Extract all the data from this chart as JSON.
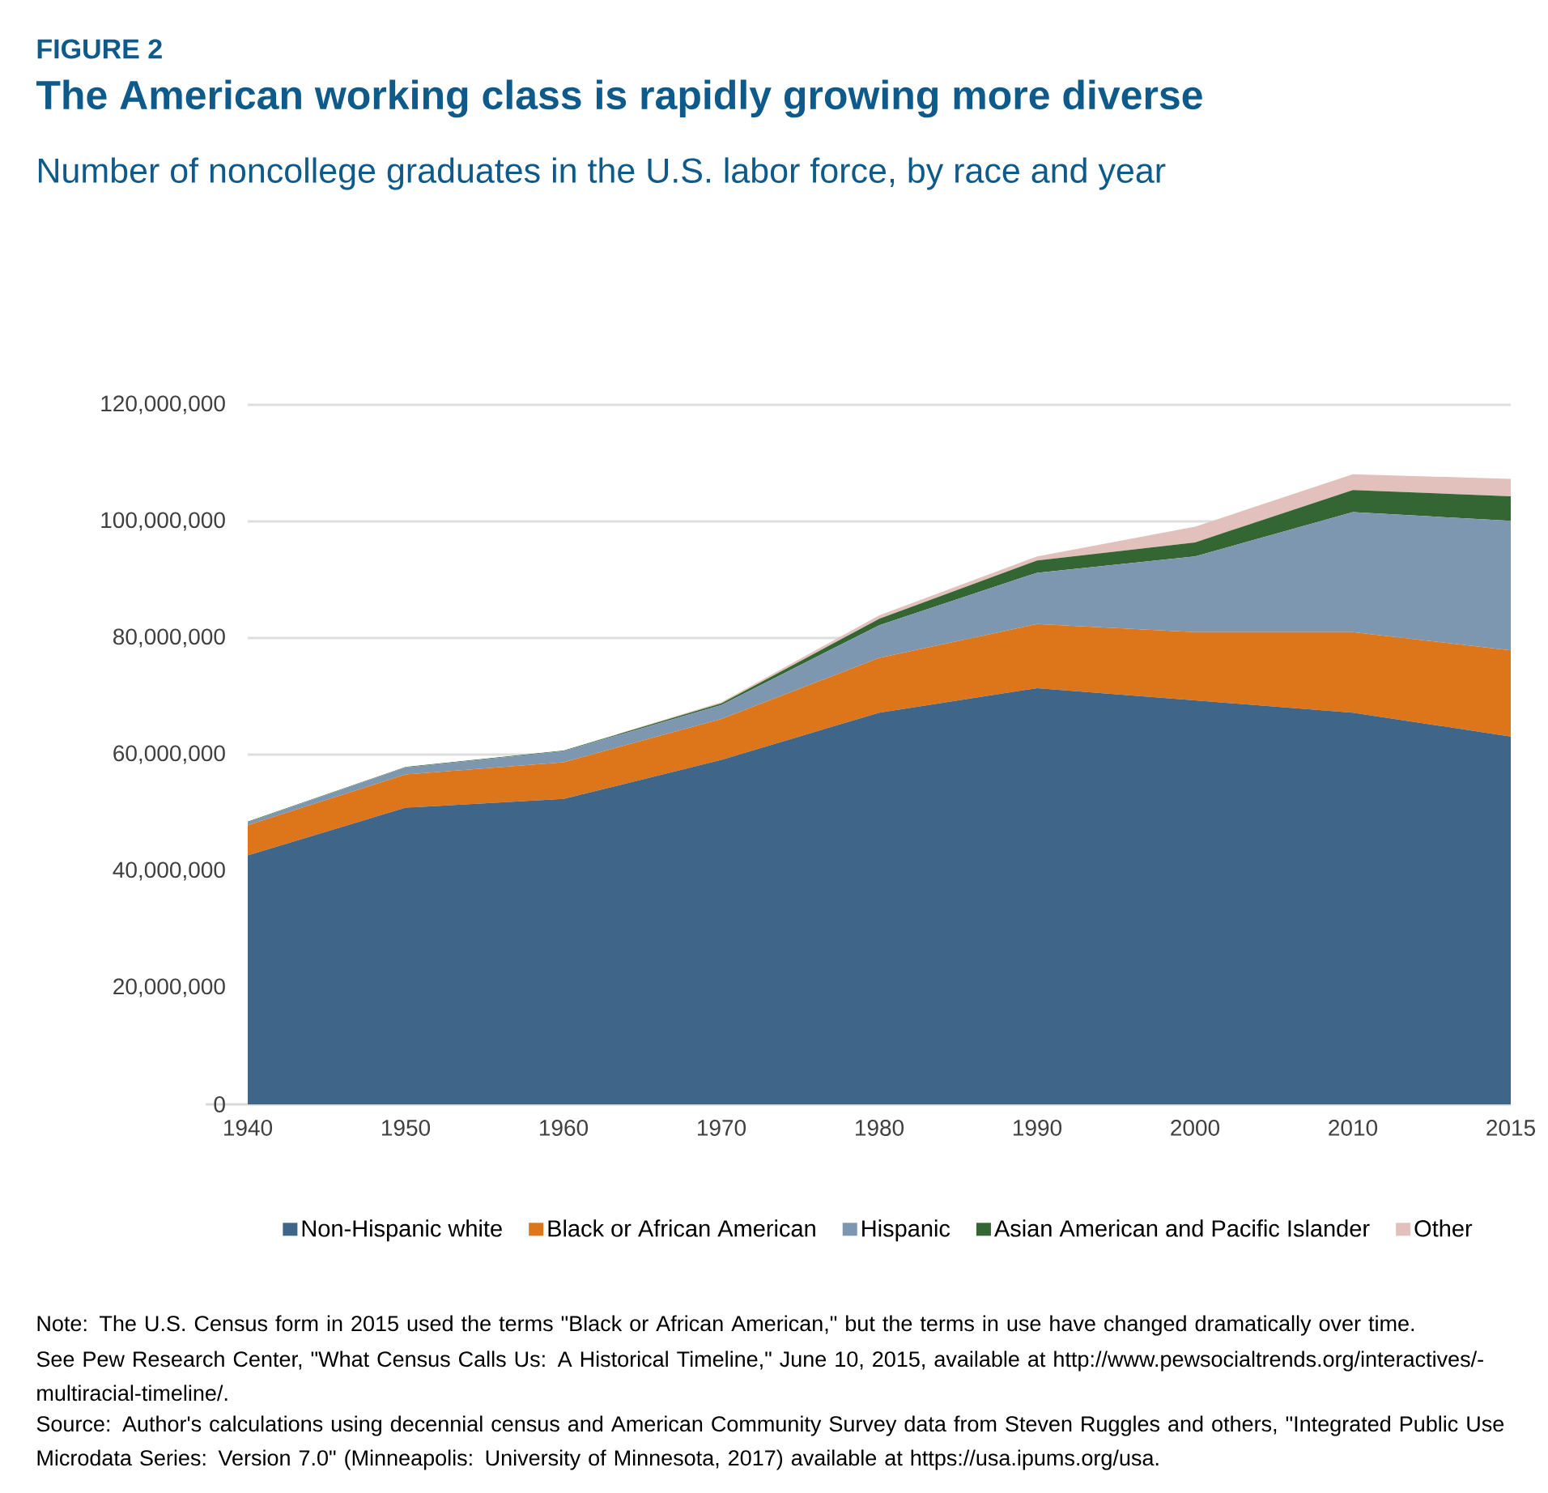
{
  "chart_data": {
    "type": "area",
    "stacked": true,
    "title": "The American working class is rapidly growing more diverse",
    "subtitle": "Number of noncollege graduates in the U.S. labor force, by race and year",
    "categories": [
      "1940",
      "1950",
      "1960",
      "1970",
      "1980",
      "1990",
      "2000",
      "2010",
      "2015"
    ],
    "series": [
      {
        "name": "Non-Hispanic white",
        "color": "#3f6589",
        "values": [
          42700000,
          50900000,
          52400000,
          59100000,
          67200000,
          71400000,
          69300000,
          67200000,
          63100000
        ]
      },
      {
        "name": "Black or African American",
        "color": "#dd751b",
        "values": [
          5200000,
          5700000,
          6300000,
          7000000,
          9400000,
          11000000,
          11700000,
          13800000,
          14800000
        ]
      },
      {
        "name": "Hispanic",
        "color": "#7d97b0",
        "values": [
          500000,
          1200000,
          1900000,
          2400000,
          5600000,
          8800000,
          13000000,
          20600000,
          22200000
        ]
      },
      {
        "name": "Asian American and Pacific Islander",
        "color": "#336633",
        "values": [
          100000,
          100000,
          100000,
          300000,
          1100000,
          2100000,
          2400000,
          3800000,
          4200000
        ]
      },
      {
        "name": "Other",
        "color": "#e2c1bd",
        "values": [
          0,
          0,
          0,
          200000,
          600000,
          700000,
          2700000,
          2700000,
          3000000
        ]
      }
    ],
    "ylim": [
      0,
      120000000
    ],
    "yticks": [
      {
        "value": 0,
        "label": "0"
      },
      {
        "value": 20000000,
        "label": "20,000,000"
      },
      {
        "value": 40000000,
        "label": "40,000,000"
      },
      {
        "value": 60000000,
        "label": "60,000,000"
      },
      {
        "value": 80000000,
        "label": "80,000,000"
      },
      {
        "value": 100000000,
        "label": "100,000,000"
      },
      {
        "value": 120000000,
        "label": "120,000,000"
      }
    ],
    "grid": "y",
    "legend": "bottom",
    "annotations": [
      "FIGURE 2",
      "Note: The U.S. Census form in 2015 used the terms \"Black or African American,\" but the terms in use have changed dramatically over time.",
      "See Pew Research Center, \"What Census Calls Us: A Historical Timeline,\" June 10, 2015, available at http://www.pewsocialtrends.org/interactives/-multiracial-timeline/.",
      "Source: Author's calculations using decennial census and American Community Survey data from Steven Ruggles and others, \"Integrated Public Use Microdata Series: Version 7.0\" (Minneapolis: University of Minnesota, 2017) available at https://usa.ipums.org/usa."
    ]
  }
}
